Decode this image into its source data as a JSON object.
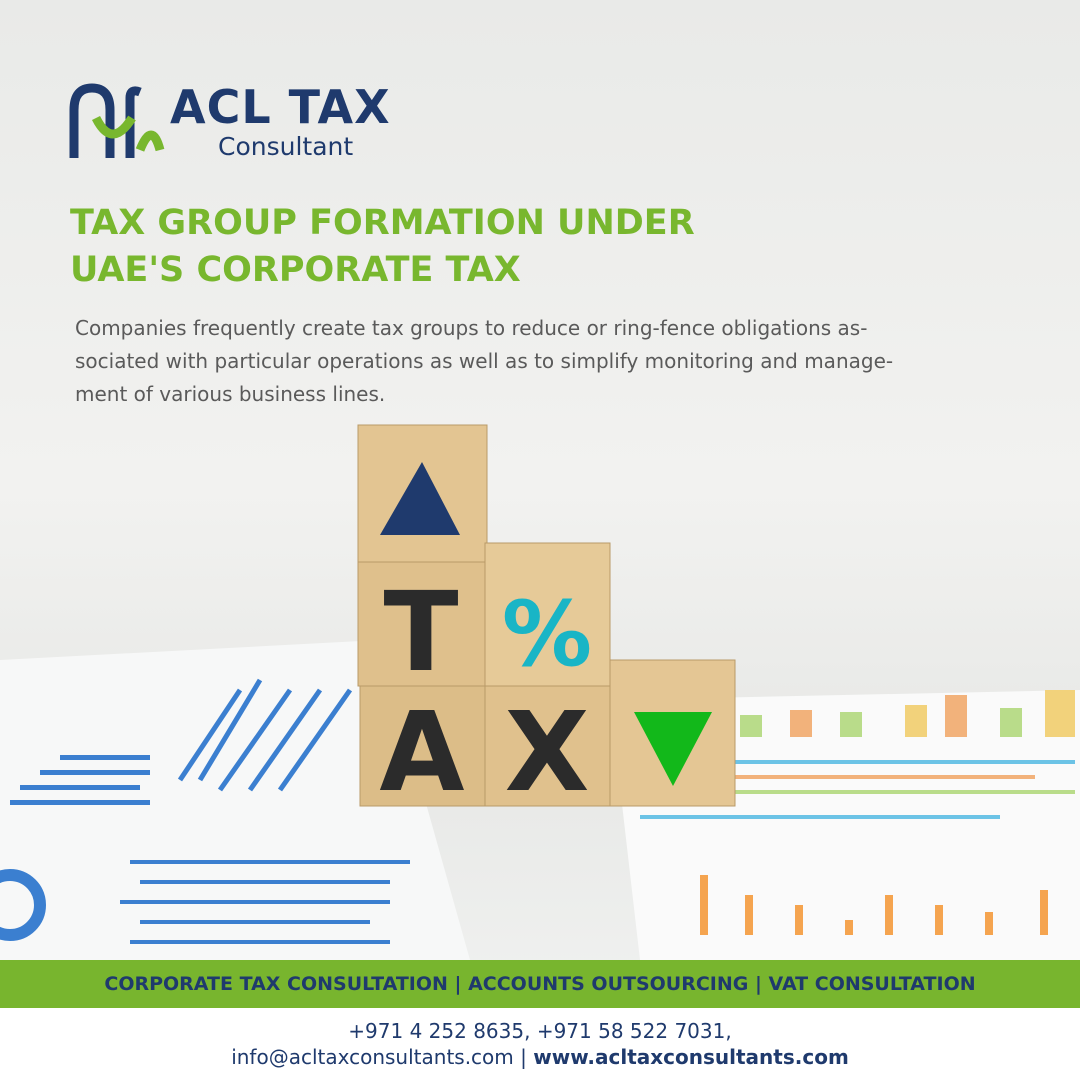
{
  "logo": {
    "name": "ACL TAX",
    "subtitle": "Consultant"
  },
  "headline": [
    "TAX GROUP FORMATION UNDER",
    "UAE'S CORPORATE TAX"
  ],
  "body": [
    "Companies frequently create tax groups to reduce or ring-fence obligations as-",
    "sociated with particular operations as well as to simplify monitoring and manage-",
    "ment of various business lines."
  ],
  "cubes": [
    "T",
    "%",
    "A",
    "X"
  ],
  "banner": "CORPORATE TAX CONSULTATION | ACCOUNTS OUTSOURCING | VAT CONSULTATION",
  "contact": {
    "phones": "+971 4 252 8635, +971 58 522 7031,",
    "email": "info@acltaxconsultants.com",
    "separator": "|",
    "website": "www.acltaxconsultants.com"
  }
}
